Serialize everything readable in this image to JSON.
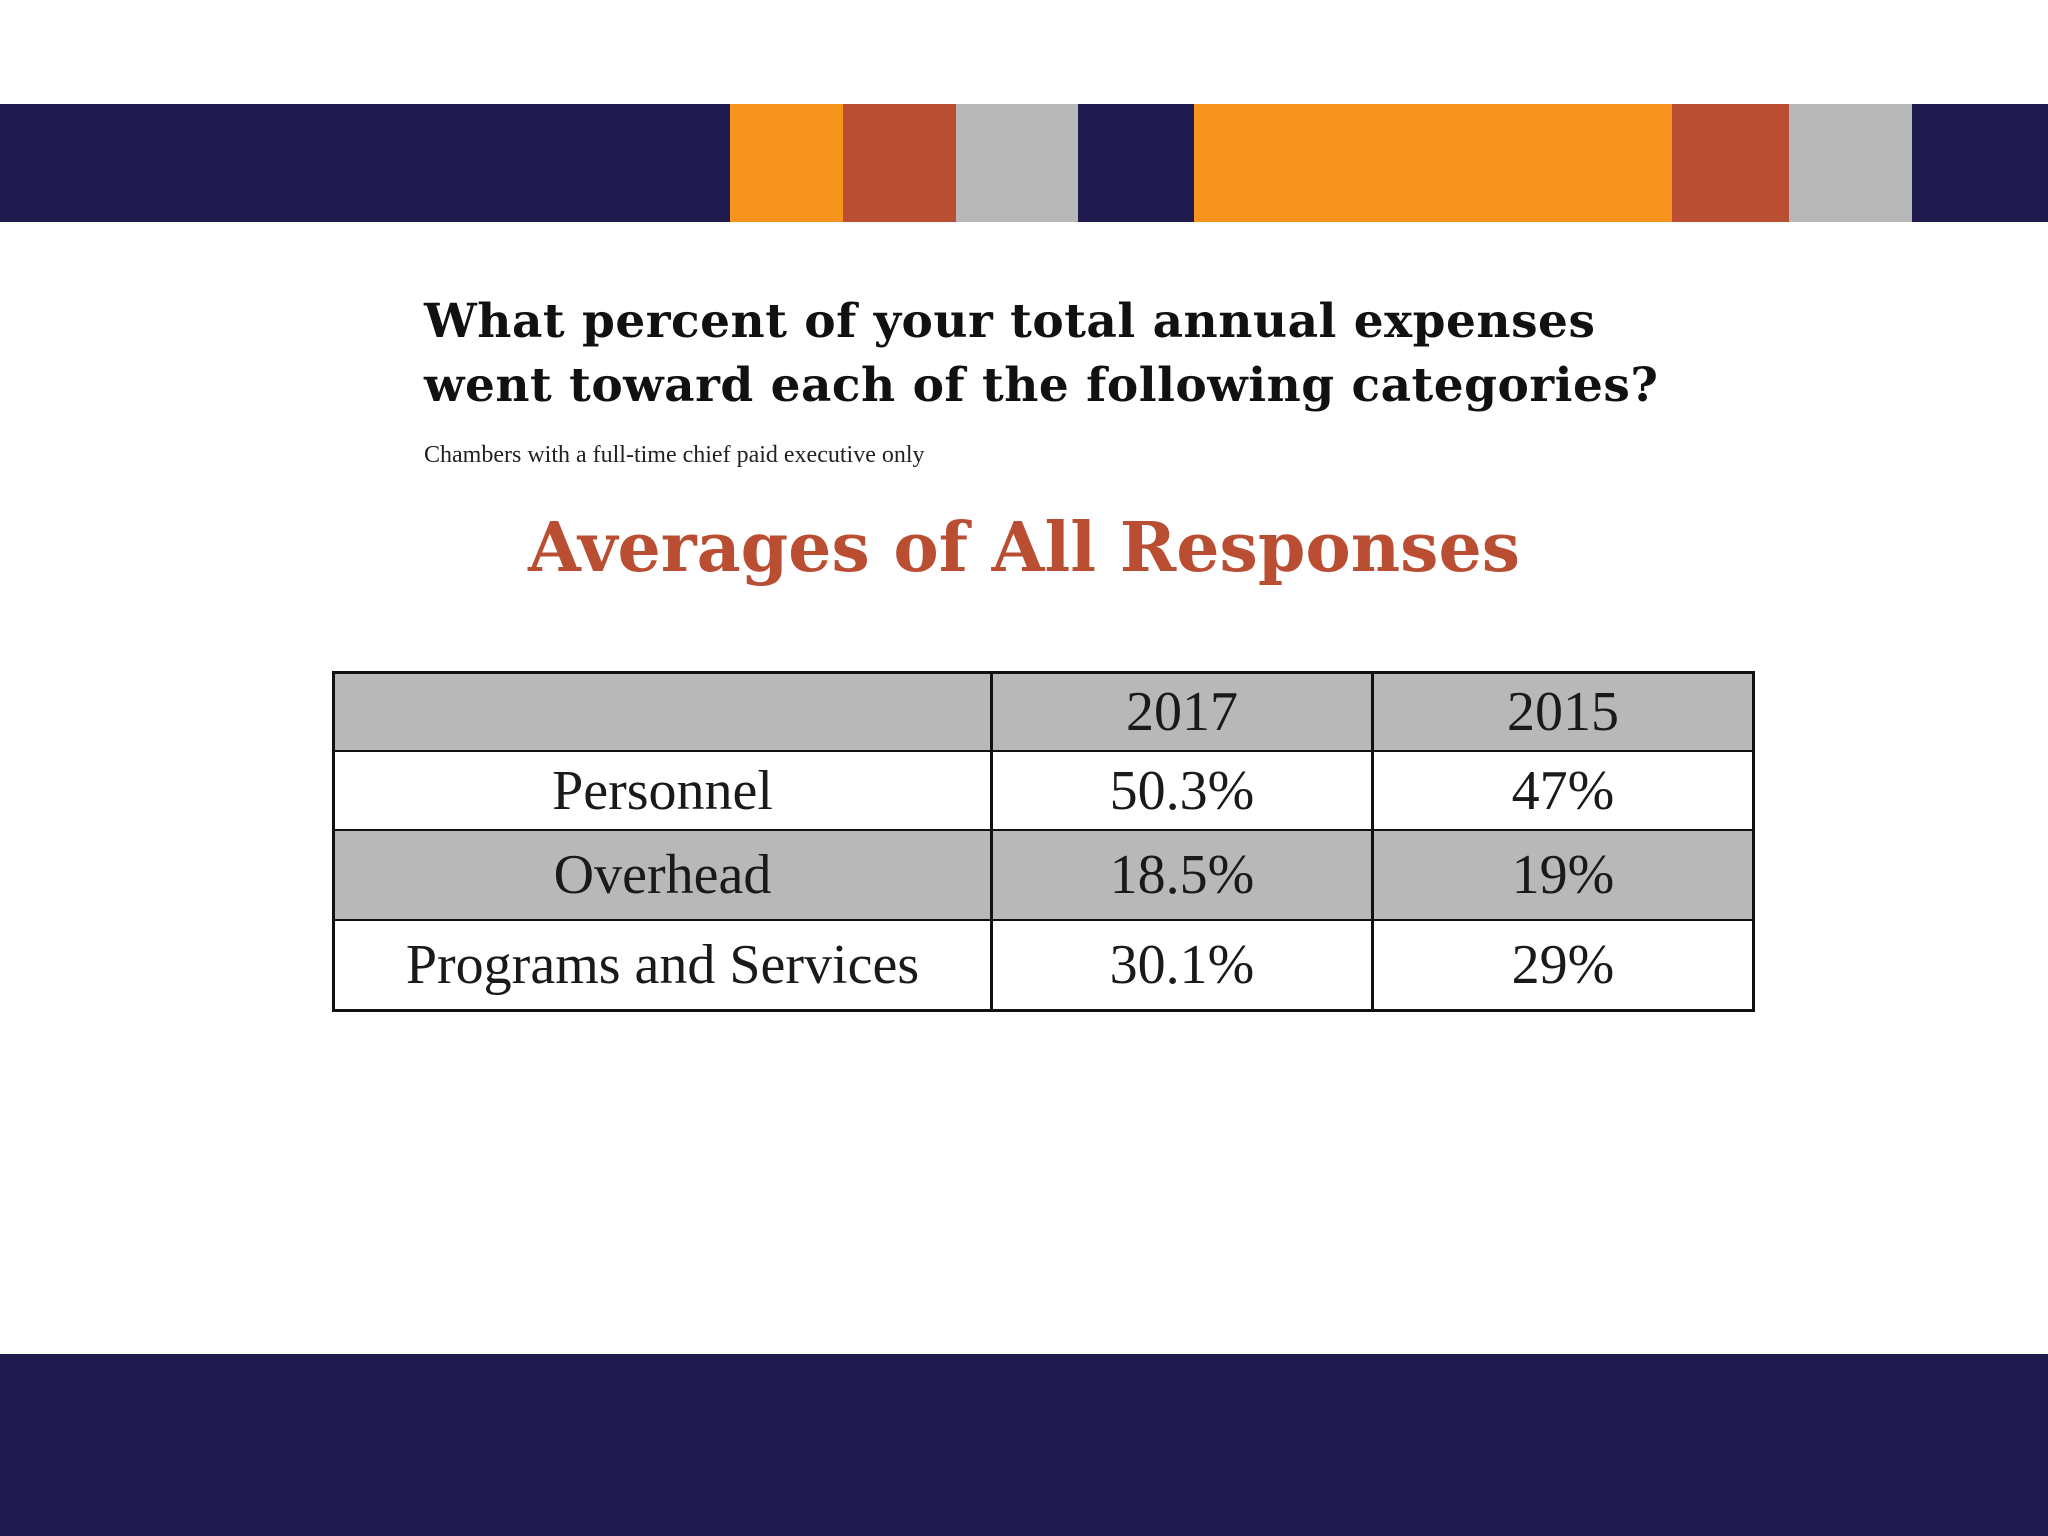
{
  "colors": {
    "navy": "#1f1b4f",
    "orange": "#f7941d",
    "rust": "#b94e33",
    "gray": "#b9b8b9",
    "heading": "#b94e33"
  },
  "slide": {
    "question_lines": [
      "What percent of your total annual expenses",
      "went toward each of the following categories?"
    ],
    "note": "Chambers with a full-time chief paid executive only",
    "heading": "Averages of All Responses"
  },
  "chart_data": {
    "type": "table",
    "columns": [
      "",
      "2017",
      "2015"
    ],
    "rows": [
      {
        "label": "Personnel",
        "values": [
          "50.3%",
          "47%"
        ]
      },
      {
        "label": "Overhead",
        "values": [
          "18.5%",
          "19%"
        ]
      },
      {
        "label": "Programs and Services",
        "values": [
          "30.1%",
          "29%"
        ]
      }
    ]
  }
}
